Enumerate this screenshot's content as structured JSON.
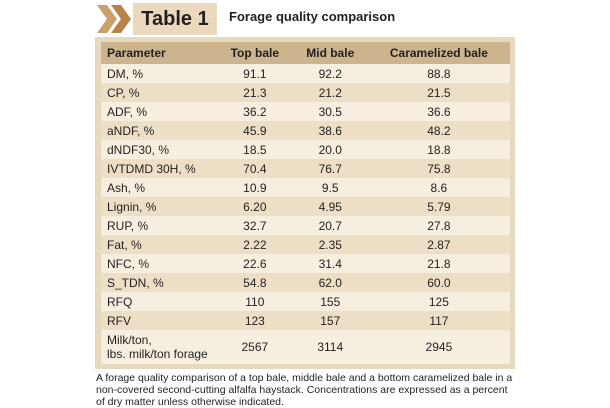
{
  "header": {
    "label": "Table 1",
    "title": "Forage quality comparison"
  },
  "table": {
    "columns": [
      "Parameter",
      "Top bale",
      "Mid bale",
      "Caramelized  bale"
    ],
    "rows": [
      [
        "DM, %",
        "91.1",
        "92.2",
        "88.8"
      ],
      [
        "CP, %",
        "21.3",
        "21.2",
        "21.5"
      ],
      [
        "ADF, %",
        "36.2",
        "30.5",
        "36.6"
      ],
      [
        "aNDF, %",
        "45.9",
        "38.6",
        "48.2"
      ],
      [
        "dNDF30, %",
        "18.5",
        "20.0",
        "18.8"
      ],
      [
        "IVTDMD 30H, %",
        "70.4",
        "76.7",
        "75.8"
      ],
      [
        "Ash, %",
        "10.9",
        "9.5",
        "8.6"
      ],
      [
        "Lignin, %",
        "6.20",
        "4.95",
        "5.79"
      ],
      [
        "RUP, %",
        "32.7",
        "20.7",
        "27.8"
      ],
      [
        "Fat, %",
        "2.22",
        "2.35",
        "2.87"
      ],
      [
        "NFC, %",
        "22.6",
        "31.4",
        "21.8"
      ],
      [
        "S_TDN, %",
        "54.8",
        "62.0",
        "60.0"
      ],
      [
        "RFQ",
        "110",
        "155",
        "125"
      ],
      [
        "RFV",
        "123",
        "157",
        "117"
      ],
      [
        [
          "Milk/ton,",
          "lbs. milk/ton forage"
        ],
        "2567",
        "3114",
        "2945"
      ]
    ]
  },
  "caption": "A forage quality comparison of a top bale, middle bale and a bottom caramelized bale in a non-covered second-cutting alfalfa haystack. Concentrations are expressed as a percent of dry matter unless otherwise indicated."
}
